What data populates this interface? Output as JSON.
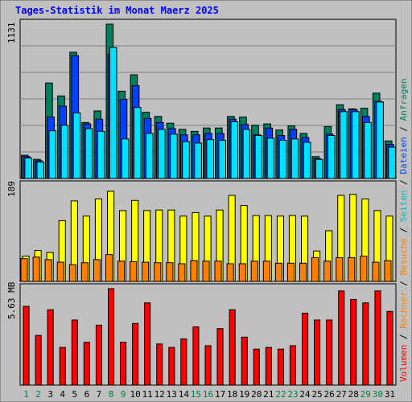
{
  "title": "Tages-Statistik im Monat Maerz 2025",
  "chart_data": [
    {
      "type": "bar",
      "panel": "top",
      "ylabel_top_value": "1131",
      "right_legend": [
        "Anfragen",
        "Dateien",
        "Seiten"
      ],
      "ylim": [
        0,
        1131
      ],
      "categories": [
        "1",
        "2",
        "3",
        "4",
        "5",
        "6",
        "7",
        "8",
        "9",
        "10",
        "11",
        "12",
        "13",
        "14",
        "15",
        "16",
        "17",
        "18",
        "19",
        "20",
        "21",
        "22",
        "23",
        "24",
        "25",
        "26",
        "27",
        "28",
        "29",
        "30",
        "31"
      ],
      "series": [
        {
          "name": "Anfragen",
          "color": "#008060",
          "values": [
            170,
            140,
            700,
            605,
            925,
            410,
            495,
            1131,
            640,
            760,
            485,
            455,
            405,
            360,
            345,
            370,
            370,
            455,
            450,
            390,
            400,
            355,
            385,
            330,
            160,
            380,
            540,
            510,
            515,
            625,
            275
          ]
        },
        {
          "name": "Dateien",
          "color": "#0040FF",
          "values": [
            160,
            130,
            450,
            530,
            900,
            400,
            435,
            910,
            580,
            680,
            440,
            410,
            365,
            320,
            320,
            330,
            330,
            435,
            395,
            320,
            370,
            315,
            360,
            300,
            145,
            325,
            505,
            505,
            455,
            565,
            250
          ]
        },
        {
          "name": "Seiten",
          "color": "#00E0FF",
          "values": [
            150,
            120,
            350,
            390,
            480,
            365,
            345,
            960,
            290,
            520,
            330,
            360,
            325,
            270,
            260,
            285,
            280,
            415,
            360,
            315,
            295,
            280,
            290,
            265,
            140,
            315,
            490,
            490,
            410,
            560,
            230
          ]
        }
      ]
    },
    {
      "type": "bar",
      "panel": "middle",
      "ylabel_top_value": "189",
      "right_legend": [
        "Besuche",
        "Seiten"
      ],
      "ylim": [
        0,
        189
      ],
      "categories": [
        "1",
        "2",
        "3",
        "4",
        "5",
        "6",
        "7",
        "8",
        "9",
        "10",
        "11",
        "12",
        "13",
        "14",
        "15",
        "16",
        "17",
        "18",
        "19",
        "20",
        "21",
        "22",
        "23",
        "24",
        "25",
        "26",
        "27",
        "28",
        "29",
        "30",
        "31"
      ],
      "series": [
        {
          "name": "Besuche",
          "color": "#FFFF00",
          "values": [
            50,
            61,
            57,
            120,
            159,
            129,
            163,
            178,
            140,
            160,
            140,
            141,
            141,
            129,
            136,
            129,
            141,
            170,
            150,
            130,
            130,
            129,
            130,
            129,
            60,
            100,
            170,
            172,
            163,
            140,
            129
          ]
        },
        {
          "name": "Seiten",
          "color": "#FF8000",
          "values": [
            45,
            48,
            43,
            38,
            33,
            37,
            43,
            53,
            40,
            39,
            38,
            37,
            37,
            35,
            41,
            40,
            40,
            35,
            35,
            40,
            40,
            36,
            36,
            36,
            47,
            40,
            47,
            47,
            50,
            38,
            41
          ]
        }
      ]
    },
    {
      "type": "bar",
      "panel": "bottom",
      "ylabel_top_value": "5.63 MB",
      "right_legend": [
        "Volumen",
        "Rechner",
        "Besuche"
      ],
      "ylim": [
        0,
        5.63
      ],
      "categories": [
        "1",
        "2",
        "3",
        "4",
        "5",
        "6",
        "7",
        "8",
        "9",
        "10",
        "11",
        "12",
        "13",
        "14",
        "15",
        "16",
        "17",
        "18",
        "19",
        "20",
        "21",
        "22",
        "23",
        "24",
        "25",
        "26",
        "27",
        "28",
        "29",
        "30",
        "31"
      ],
      "series": [
        {
          "name": "Volumen",
          "color": "#FF0000",
          "values": [
            4.6,
            2.9,
            4.4,
            2.2,
            3.8,
            2.5,
            3.5,
            5.63,
            2.5,
            3.6,
            4.8,
            2.4,
            2.2,
            2.7,
            3.4,
            2.3,
            3.3,
            4.4,
            2.8,
            2.1,
            2.2,
            2.1,
            2.3,
            4.2,
            3.8,
            3.8,
            5.5,
            5.0,
            4.8,
            5.5,
            4.3
          ]
        }
      ]
    }
  ],
  "weekend_days": [
    "1",
    "2",
    "8",
    "9",
    "15",
    "16",
    "22",
    "23",
    "29",
    "30"
  ],
  "colors": {
    "background": "#C0C0C0",
    "title": "#0000FF",
    "weekday": "#000000",
    "weekend": "#008040",
    "volumen": "#FF0000",
    "rechner": "#FF8000",
    "besuche_legend": "#FF8000",
    "seiten_legend": "#00C0C0",
    "dateien": "#0040FF",
    "anfragen": "#008060"
  }
}
